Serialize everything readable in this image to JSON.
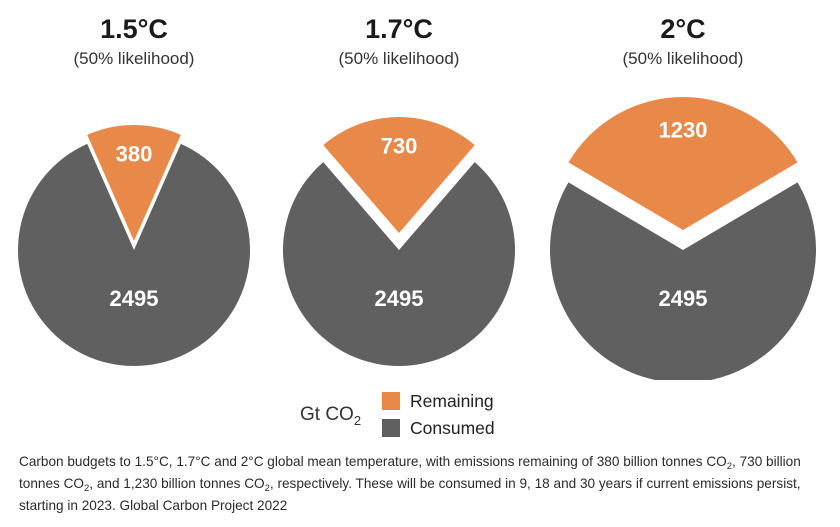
{
  "chart_data": [
    {
      "type": "pie",
      "title": "1.5°C",
      "subtitle": "(50% likelihood)",
      "slices": [
        {
          "name": "Remaining",
          "value": 380
        },
        {
          "name": "Consumed",
          "value": 2495
        }
      ]
    },
    {
      "type": "pie",
      "title": "1.7°C",
      "subtitle": "(50% likelihood)",
      "slices": [
        {
          "name": "Remaining",
          "value": 730
        },
        {
          "name": "Consumed",
          "value": 2495
        }
      ]
    },
    {
      "type": "pie",
      "title": "2°C",
      "subtitle": "(50% likelihood)",
      "slices": [
        {
          "name": "Remaining",
          "value": 1230
        },
        {
          "name": "Consumed",
          "value": 2495
        }
      ]
    }
  ],
  "legend": {
    "unit_prefix": "Gt CO",
    "unit_sub": "2",
    "remaining_label": "Remaining",
    "consumed_label": "Consumed"
  },
  "colors": {
    "remaining": "#e8894a",
    "consumed": "#606060"
  },
  "caption": {
    "p1": "Carbon budgets to 1.5°C, 1.7°C and 2°C global mean temperature, with emissions remaining of 380 billion tonnes CO",
    "s1": "2",
    "p2": ", 730 billion tonnes CO",
    "s2": "2",
    "p3": ", and 1,230 billion tonnes CO",
    "s3": "2",
    "p4": ", respectively. These will be consumed in 9, 18 and 30 years if current emissions persist, starting in 2023. Global Carbon Project 2022"
  }
}
